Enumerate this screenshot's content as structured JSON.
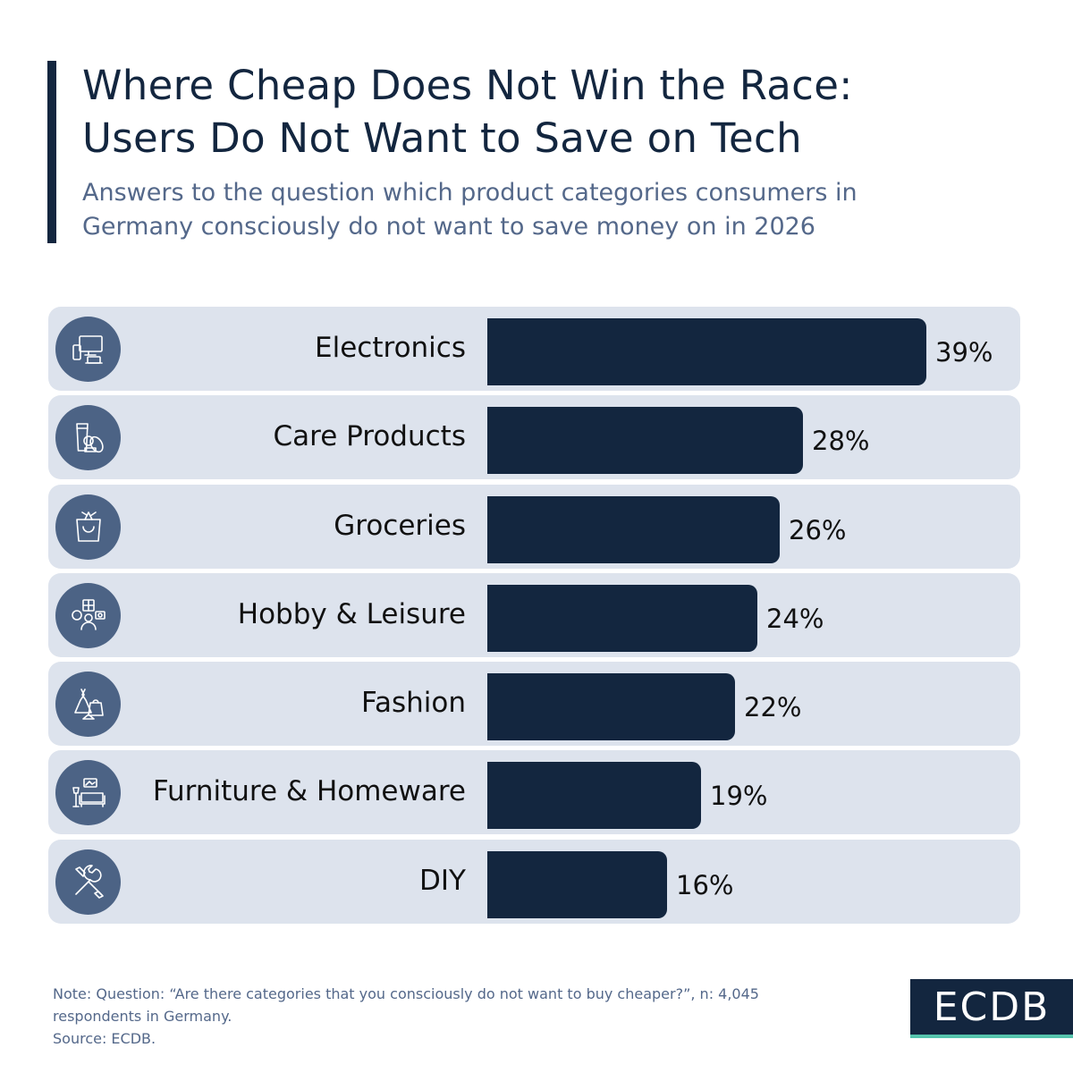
{
  "header": {
    "title_line1": "Where Cheap Does Not Win the Race:",
    "title_line2": "Users Do Not Want to Save on Tech",
    "subtitle_line1": "Answers to the question which product categories consumers in",
    "subtitle_line2": "Germany consciously do not want to save money on in 2026"
  },
  "chart_data": {
    "type": "bar",
    "orientation": "horizontal",
    "categories": [
      "Electronics",
      "Care Products",
      "Groceries",
      "Hobby & Leisure",
      "Fashion",
      "Furniture & Homeware",
      "DIY"
    ],
    "values": [
      39,
      28,
      26,
      24,
      22,
      19,
      16
    ],
    "value_labels": [
      "39%",
      "28%",
      "26%",
      "24%",
      "22%",
      "19%",
      "16%"
    ],
    "icons": [
      "electronics-icon",
      "care-products-icon",
      "groceries-icon",
      "hobby-leisure-icon",
      "fashion-icon",
      "furniture-icon",
      "diy-tools-icon"
    ],
    "unit": "%",
    "xlim": [
      0,
      39
    ],
    "bar_color": "#13263f",
    "row_background": "#dde3ed",
    "icon_background": "#4c6385"
  },
  "footer": {
    "note_line1": "Note: Question: “Are there categories that you consciously do not want to buy cheaper?”, n: 4,045",
    "note_line2": "respondents in Germany.",
    "source": "Source: ECDB."
  },
  "logo": {
    "text": "ECDB",
    "accent_color": "#56c4ad"
  }
}
